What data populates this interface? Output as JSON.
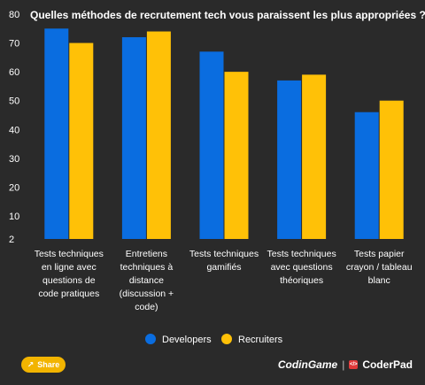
{
  "title": "Quelles méthodes de recrutement tech vous paraissent les plus appropriées ?",
  "share_label": "Share",
  "brand": {
    "codingame": "CodinGame",
    "coderpad": "CoderPad"
  },
  "colors": {
    "developers": "#0a6de0",
    "recruiters": "#ffc107",
    "background": "#2a2a2a",
    "share": "#f2b400"
  },
  "chart_data": {
    "type": "bar",
    "title": "Quelles méthodes de recrutement tech vous paraissent les plus appropriées ?",
    "yticks": [
      2,
      10,
      20,
      30,
      40,
      50,
      60,
      70,
      80
    ],
    "ylim": [
      2,
      80
    ],
    "categories": [
      [
        "Tests techniques",
        "en ligne avec",
        "questions de",
        "code pratiques"
      ],
      [
        "Entretiens",
        "techniques à",
        "distance",
        "(discussion +",
        "code)"
      ],
      [
        "Tests techniques",
        "gamifiés"
      ],
      [
        "Tests techniques",
        "avec questions",
        "théoriques"
      ],
      [
        "Tests papier",
        "crayon / tableau",
        "blanc"
      ]
    ],
    "series": [
      {
        "name": "Developers",
        "values": [
          75,
          72,
          67,
          57,
          46
        ]
      },
      {
        "name": "Recruiters",
        "values": [
          70,
          74,
          60,
          59,
          50
        ]
      }
    ],
    "legend": "bottom-center"
  }
}
